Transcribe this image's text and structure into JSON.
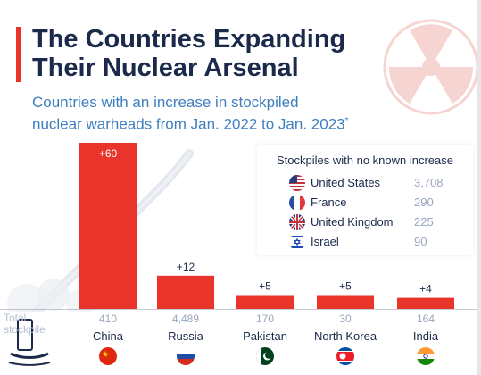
{
  "header": {
    "title_line1": "The Countries Expanding",
    "title_line2": "Their Nuclear Arsenal",
    "subtitle_line1": "Countries with an increase in stockpiled",
    "subtitle_line2": "nuclear warheads from Jan. 2022 to Jan. 2023",
    "subtitle_mark": "*"
  },
  "colors": {
    "bar": "#e8342a",
    "title": "#1b2a4a",
    "subtitle": "#3f7fbf",
    "muted": "#9aa7bd"
  },
  "chart_data": {
    "type": "bar",
    "categories": [
      "China",
      "Russia",
      "Pakistan",
      "North Korea",
      "India"
    ],
    "values": [
      60,
      12,
      5,
      5,
      4
    ],
    "data_labels": [
      "+60",
      "+12",
      "+5",
      "+5",
      "+4"
    ],
    "totals_label": "Total stockpile",
    "totals": [
      "410",
      "4,489",
      "170",
      "30",
      "164"
    ],
    "ylim": [
      0,
      60
    ],
    "grid": false
  },
  "legend": {
    "title": "Stockpiles with no known increase",
    "items": [
      {
        "name": "United States",
        "value": "3,708",
        "flag": "us-flag-icon"
      },
      {
        "name": "France",
        "value": "290",
        "flag": "france-flag-icon"
      },
      {
        "name": "United Kingdom",
        "value": "225",
        "flag": "uk-flag-icon"
      },
      {
        "name": "Israel",
        "value": "90",
        "flag": "israel-flag-icon"
      }
    ]
  },
  "icons": {
    "header_icon": "radiation-icon",
    "category_flags": [
      "china-flag-icon",
      "russia-flag-icon",
      "pakistan-flag-icon",
      "north-korea-flag-icon",
      "india-flag-icon"
    ]
  }
}
